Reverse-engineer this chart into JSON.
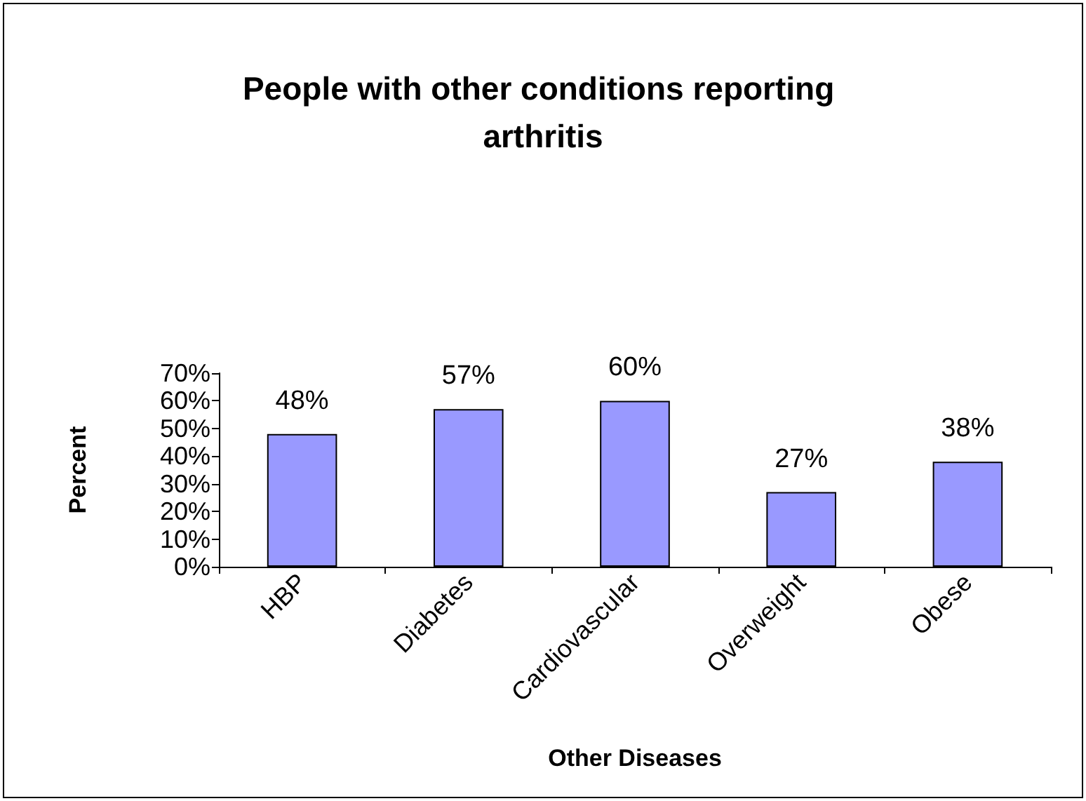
{
  "chart_data": {
    "type": "bar",
    "title": "People with other conditions reporting arthritis",
    "xlabel": "Other Diseases",
    "ylabel": "Percent",
    "categories": [
      "HBP",
      "Diabetes",
      "Cardiovascular",
      "Overweight",
      "Obese"
    ],
    "values": [
      48,
      57,
      60,
      27,
      38
    ],
    "value_labels": [
      "48%",
      "57%",
      "60%",
      "27%",
      "38%"
    ],
    "color": "#9999ff",
    "ylim": [
      0,
      70
    ],
    "yticks": [
      {
        "value": 0,
        "label": "0%"
      },
      {
        "value": 10,
        "label": "10%"
      },
      {
        "value": 20,
        "label": "20%"
      },
      {
        "value": 30,
        "label": "30%"
      },
      {
        "value": 40,
        "label": "40%"
      },
      {
        "value": 50,
        "label": "50%"
      },
      {
        "value": 60,
        "label": "60%"
      },
      {
        "value": 70,
        "label": "70%"
      }
    ]
  }
}
